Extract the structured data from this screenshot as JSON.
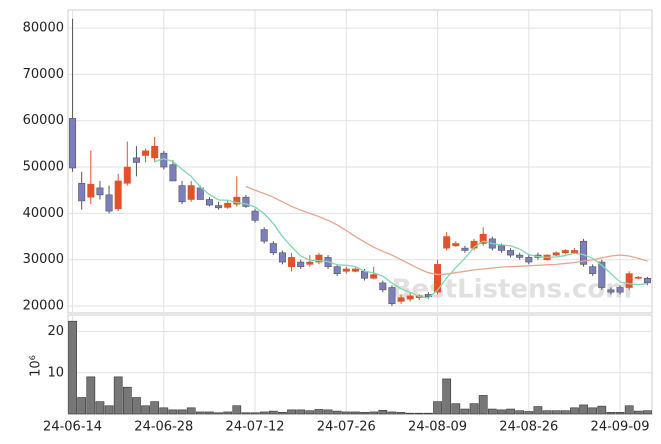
{
  "chart_data": [
    {
      "type": "candlestick",
      "open": [
        60500,
        46500,
        43500,
        45500,
        44000,
        41000,
        46500,
        52000,
        52500,
        52000,
        53000,
        50500,
        46000,
        43000,
        45500,
        43000,
        41700,
        41300,
        42000,
        43500,
        40500,
        36500,
        33500,
        31500,
        28500,
        29500,
        29000,
        29500,
        30500,
        28500,
        27500,
        27500,
        27500,
        26000,
        25000,
        24000,
        21000,
        21500,
        21800,
        22500,
        23000,
        32500,
        33000,
        32500,
        32500,
        33500,
        34500,
        33000,
        32000,
        31000,
        30500,
        31000,
        30000,
        31000,
        31500,
        31500,
        34000,
        28500,
        29500,
        23500,
        24000,
        24000,
        26000,
        26000
      ],
      "high": [
        82000,
        49000,
        53500,
        47000,
        46000,
        48500,
        55500,
        54500,
        54000,
        56500,
        53500,
        51500,
        47000,
        47000,
        46000,
        43500,
        42500,
        43000,
        48000,
        44000,
        41000,
        37000,
        34000,
        32000,
        31500,
        30000,
        31000,
        31500,
        31000,
        29000,
        28500,
        28300,
        28000,
        28500,
        25500,
        24500,
        22500,
        22800,
        22500,
        23000,
        30000,
        36000,
        34000,
        33000,
        34500,
        37000,
        35000,
        33500,
        32500,
        31500,
        31000,
        31500,
        31200,
        31800,
        32300,
        32500,
        34500,
        29000,
        30000,
        24000,
        24500,
        27500,
        26500,
        26300
      ],
      "low": [
        49000,
        40800,
        42000,
        43000,
        40000,
        40500,
        46000,
        48000,
        51000,
        51000,
        49500,
        47000,
        42000,
        42500,
        43000,
        41500,
        40800,
        41000,
        41500,
        41200,
        38000,
        33500,
        31000,
        29000,
        27500,
        28000,
        28500,
        29000,
        28000,
        26500,
        27000,
        27300,
        25500,
        25800,
        23000,
        20000,
        20500,
        21000,
        21300,
        21500,
        22500,
        32000,
        32800,
        31500,
        32000,
        33000,
        32000,
        31500,
        30500,
        30000,
        29000,
        30000,
        29800,
        30800,
        31200,
        31300,
        28500,
        26500,
        23500,
        22500,
        22500,
        23500,
        25800,
        24500
      ],
      "close": [
        49800,
        42700,
        46300,
        44000,
        40500,
        47000,
        50000,
        51000,
        53500,
        54500,
        50000,
        47000,
        42500,
        46000,
        43000,
        41800,
        41200,
        42200,
        43500,
        41500,
        38500,
        34000,
        31500,
        29500,
        30500,
        28500,
        29500,
        31000,
        28500,
        27000,
        28000,
        28000,
        26000,
        26800,
        23500,
        20500,
        21800,
        22200,
        22200,
        22000,
        29000,
        35000,
        33500,
        32000,
        34000,
        35500,
        32500,
        32000,
        31000,
        30500,
        29500,
        30500,
        31000,
        31500,
        32000,
        32000,
        29000,
        27000,
        24000,
        23000,
        23000,
        27000,
        26200,
        25000
      ],
      "up_color": "#e2522a",
      "down_color": "#7b7fc0",
      "series": [
        {
          "color": "#7fd8b0",
          "values": [
            null,
            null,
            null,
            null,
            null,
            null,
            null,
            null,
            null,
            51200,
            51800,
            51200,
            49500,
            48000,
            45700,
            44060,
            42900,
            42840,
            42340,
            42040,
            41380,
            39940,
            37800,
            35000,
            32800,
            30800,
            29900,
            29800,
            29600,
            28900,
            28800,
            28500,
            27500,
            27160,
            26460,
            24960,
            23720,
            22960,
            22040,
            21740,
            23440,
            26080,
            28340,
            30300,
            32700,
            34000,
            33500,
            33200,
            33000,
            32300,
            31100,
            30700,
            30500,
            30600,
            30900,
            31400,
            31100,
            30300,
            28800,
            27000,
            25200,
            24800,
            24640,
            24840
          ]
        },
        {
          "color": "#e9a58e",
          "values": [
            null,
            null,
            null,
            null,
            null,
            null,
            null,
            null,
            null,
            null,
            null,
            null,
            null,
            null,
            null,
            null,
            null,
            null,
            null,
            45800,
            45000,
            44300,
            43500,
            42500,
            41500,
            40700,
            40000,
            39300,
            38500,
            37500,
            36300,
            35000,
            33800,
            32700,
            31800,
            31000,
            30000,
            29000,
            28000,
            27200,
            26800,
            26900,
            27200,
            27500,
            27800,
            28000,
            28200,
            28400,
            28500,
            28600,
            28700,
            28800,
            28900,
            29000,
            29200,
            29400,
            29700,
            30000,
            30400,
            30800,
            31000,
            30800,
            30300,
            29700
          ]
        }
      ],
      "ylim": [
        18500,
        83900
      ],
      "yticks": [
        20000,
        30000,
        40000,
        50000,
        60000,
        70000,
        80000
      ],
      "grid": true,
      "watermark": "BestListens.com"
    },
    {
      "type": "bar",
      "y_label": "10⁶",
      "categories": [
        "24-06-14",
        null,
        null,
        null,
        null,
        null,
        null,
        null,
        null,
        null,
        "24-06-28",
        null,
        null,
        null,
        null,
        null,
        null,
        null,
        null,
        null,
        "24-07-12",
        null,
        null,
        null,
        null,
        null,
        null,
        null,
        null,
        null,
        "24-07-26",
        null,
        null,
        null,
        null,
        null,
        null,
        null,
        null,
        null,
        "24-08-09",
        null,
        null,
        null,
        null,
        null,
        null,
        null,
        null,
        null,
        "24-08-26",
        null,
        null,
        null,
        null,
        null,
        null,
        null,
        null,
        null,
        "24-09-09",
        null,
        null,
        null
      ],
      "values": [
        22.5,
        4,
        9,
        3,
        2,
        9,
        6.5,
        4,
        2,
        3,
        1.5,
        1,
        1,
        1.5,
        0.5,
        0.5,
        0.3,
        0.5,
        2,
        0.3,
        0.3,
        0.5,
        0.7,
        0.4,
        1,
        1,
        0.8,
        1.1,
        1,
        0.7,
        0.5,
        0.5,
        0.4,
        0.5,
        0.9,
        0.5,
        0.4,
        0.2,
        0.2,
        0.2,
        3,
        8.5,
        2.5,
        1.2,
        2.5,
        4.5,
        1.2,
        1,
        1.2,
        0.8,
        0.6,
        1.8,
        0.8,
        0.8,
        0.8,
        1.5,
        2.2,
        1.5,
        1.9,
        0.4,
        0.4,
        2,
        0.7,
        0.8
      ],
      "color": "#777777",
      "ylim": [
        0,
        24
      ],
      "yticks": [
        10,
        20
      ],
      "grid": true
    }
  ]
}
